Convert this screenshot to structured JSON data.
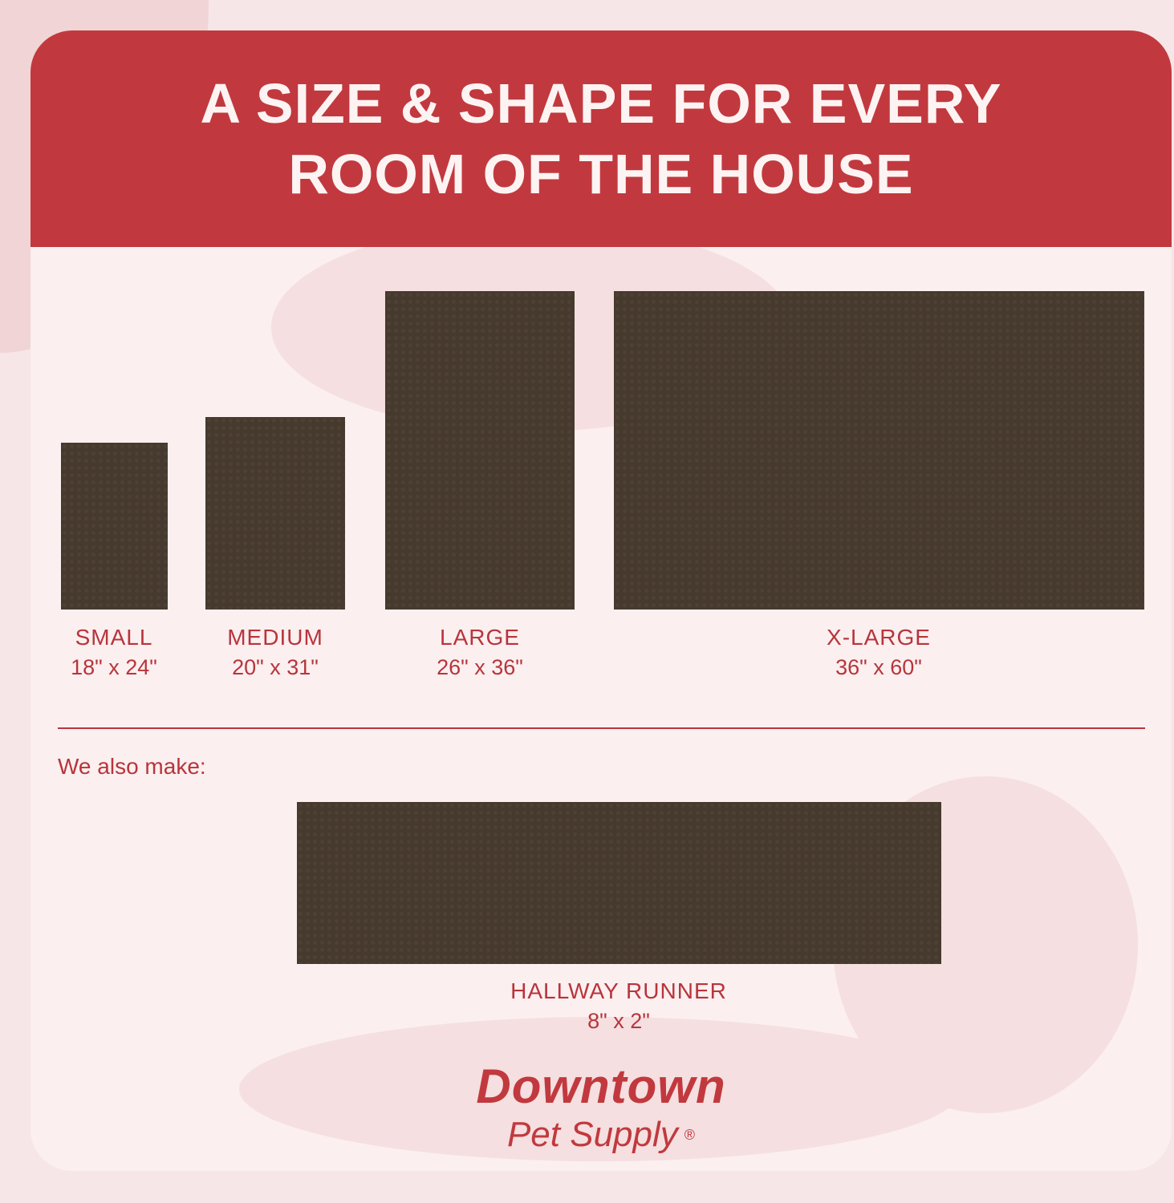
{
  "header": {
    "title_line1": "A SIZE & SHAPE FOR EVERY",
    "title_line2": "ROOM OF THE HOUSE"
  },
  "sizes": [
    {
      "name": "SMALL",
      "dimensions": "18\" x 24\""
    },
    {
      "name": "MEDIUM",
      "dimensions": "20\" x 31\""
    },
    {
      "name": "LARGE",
      "dimensions": "26\" x 36\""
    },
    {
      "name": "X-LARGE",
      "dimensions": "36\" x 60\""
    }
  ],
  "also_make_label": "We also make:",
  "runner": {
    "name": "HALLWAY RUNNER",
    "dimensions": "8\" x 2\""
  },
  "logo": {
    "line1": "Downtown",
    "line2": "Pet Supply",
    "mark": "®"
  },
  "colors": {
    "brand_red": "#c1393e",
    "mat": "#463a2e",
    "background": "#fbeff0"
  }
}
